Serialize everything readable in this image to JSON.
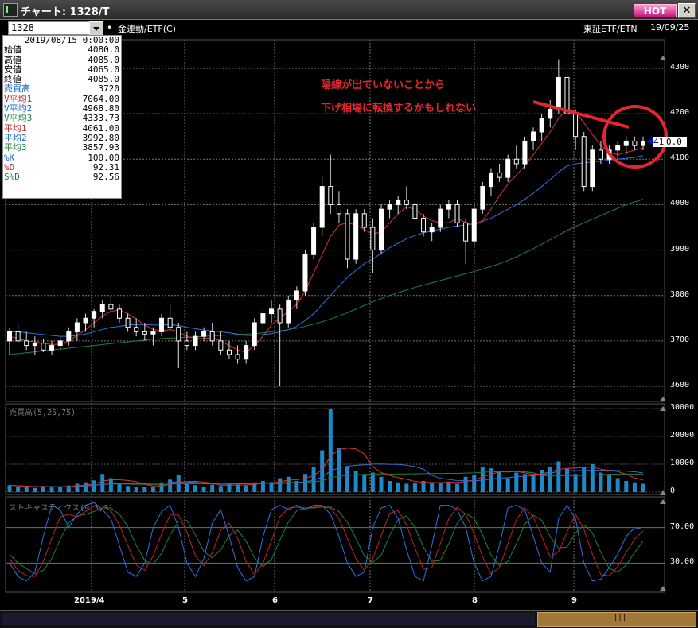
{
  "window": {
    "title": "チャート: 1328/T",
    "hot_label": "HOT",
    "close_label": "✕"
  },
  "toolbar": {
    "symbol_code": "1328",
    "bullet": "•",
    "category": "金連動/ETF(C)",
    "market": "東証ETF/ETN",
    "date": "19/09/25"
  },
  "info_panel": {
    "date": "2019/08/15 0:00:00",
    "rows": [
      {
        "key": "始値",
        "value": "4080.0",
        "color": "#000000"
      },
      {
        "key": "高値",
        "value": "4085.0",
        "color": "#000000"
      },
      {
        "key": "安値",
        "value": "4065.0",
        "color": "#000000"
      },
      {
        "key": "終値",
        "value": "4085.0",
        "color": "#000000"
      },
      {
        "key": "売買高",
        "value": "3720",
        "color": "#1060c0"
      },
      {
        "key": "V平均1",
        "value": "7064.00",
        "color": "#c02020"
      },
      {
        "key": "V平均2",
        "value": "4968.80",
        "color": "#1060c0"
      },
      {
        "key": "V平均3",
        "value": "4333.73",
        "color": "#208040"
      },
      {
        "key": "平均1",
        "value": "4061.00",
        "color": "#c02020"
      },
      {
        "key": "平均2",
        "value": "3992.80",
        "color": "#1060c0"
      },
      {
        "key": "平均3",
        "value": "3857.93",
        "color": "#208040"
      },
      {
        "key": "%K",
        "value": "100.00",
        "color": "#1060c0"
      },
      {
        "key": "%D",
        "value": "92.31",
        "color": "#c02020"
      },
      {
        "key": "S%D",
        "value": "92.56",
        "color": "#208040"
      }
    ]
  },
  "annotation": {
    "line1": "陽線が出ていないことから",
    "line2": "下げ相場に転換するかもしれない",
    "color": "#e8252c"
  },
  "price_tag": {
    "left": "41",
    "right": "0.0"
  },
  "price_axis": [
    "4300",
    "4200",
    "4100",
    "4000",
    "3900",
    "3800",
    "3700",
    "3600"
  ],
  "volume_axis": [
    "30000",
    "20000",
    "10000",
    "0"
  ],
  "stoch_axis": [
    "70.00",
    "30.00"
  ],
  "date_ticks": [
    "2019/4",
    "5",
    "6",
    "7",
    "8",
    "9"
  ],
  "panels": {
    "volume_title": "売買高(5,25,75)",
    "stoch_title": "ストキャスティクス(9,3,3)"
  },
  "chart_data": [
    {
      "type": "candlestick",
      "title": "",
      "ylim": [
        3600,
        4300
      ],
      "ma_colors": {
        "ma1": "#e03030",
        "ma2": "#3070e0",
        "ma3": "#208040"
      },
      "candles": [
        [
          3700,
          3730,
          3670,
          3720
        ],
        [
          3720,
          3740,
          3690,
          3700
        ],
        [
          3700,
          3720,
          3680,
          3690
        ],
        [
          3690,
          3710,
          3670,
          3695
        ],
        [
          3695,
          3705,
          3675,
          3680
        ],
        [
          3680,
          3700,
          3670,
          3690
        ],
        [
          3690,
          3710,
          3680,
          3700
        ],
        [
          3700,
          3730,
          3690,
          3720
        ],
        [
          3720,
          3750,
          3700,
          3740
        ],
        [
          3740,
          3760,
          3720,
          3750
        ],
        [
          3750,
          3770,
          3730,
          3765
        ],
        [
          3765,
          3790,
          3750,
          3780
        ],
        [
          3780,
          3800,
          3760,
          3770
        ],
        [
          3770,
          3780,
          3740,
          3750
        ],
        [
          3750,
          3760,
          3720,
          3730
        ],
        [
          3730,
          3750,
          3710,
          3720
        ],
        [
          3720,
          3740,
          3700,
          3715
        ],
        [
          3715,
          3730,
          3690,
          3720
        ],
        [
          3720,
          3760,
          3710,
          3750
        ],
        [
          3750,
          3780,
          3720,
          3730
        ],
        [
          3730,
          3740,
          3640,
          3700
        ],
        [
          3700,
          3720,
          3680,
          3690
        ],
        [
          3690,
          3720,
          3680,
          3710
        ],
        [
          3710,
          3730,
          3700,
          3720
        ],
        [
          3720,
          3740,
          3690,
          3700
        ],
        [
          3700,
          3720,
          3670,
          3680
        ],
        [
          3680,
          3700,
          3660,
          3670
        ],
        [
          3670,
          3690,
          3650,
          3660
        ],
        [
          3660,
          3700,
          3650,
          3690
        ],
        [
          3690,
          3750,
          3680,
          3740
        ],
        [
          3740,
          3770,
          3720,
          3760
        ],
        [
          3760,
          3790,
          3740,
          3770
        ],
        [
          3770,
          3780,
          3600,
          3740
        ],
        [
          3740,
          3800,
          3730,
          3790
        ],
        [
          3790,
          3820,
          3770,
          3810
        ],
        [
          3810,
          3900,
          3800,
          3890
        ],
        [
          3890,
          3960,
          3880,
          3950
        ],
        [
          3950,
          4060,
          3930,
          4040
        ],
        [
          4040,
          4110,
          3980,
          4000
        ],
        [
          4000,
          4030,
          3960,
          3980
        ],
        [
          3980,
          3990,
          3860,
          3880
        ],
        [
          3880,
          3990,
          3870,
          3980
        ],
        [
          3980,
          3990,
          3940,
          3950
        ],
        [
          3950,
          3970,
          3850,
          3900
        ],
        [
          3900,
          4000,
          3890,
          3990
        ],
        [
          3990,
          4010,
          3970,
          4000
        ],
        [
          4000,
          4020,
          3980,
          4010
        ],
        [
          4010,
          4040,
          3990,
          4000
        ],
        [
          4000,
          4010,
          3960,
          3970
        ],
        [
          3970,
          3980,
          3930,
          3940
        ],
        [
          3940,
          3960,
          3920,
          3950
        ],
        [
          3950,
          4000,
          3940,
          3990
        ],
        [
          3990,
          4010,
          3970,
          4000
        ],
        [
          4000,
          4010,
          3950,
          3960
        ],
        [
          3960,
          3970,
          3870,
          3920
        ],
        [
          3920,
          4000,
          3910,
          3990
        ],
        [
          3990,
          4050,
          3980,
          4040
        ],
        [
          4040,
          4080,
          4020,
          4070
        ],
        [
          4070,
          4090,
          4050,
          4060
        ],
        [
          4060,
          4110,
          4050,
          4100
        ],
        [
          4100,
          4130,
          4080,
          4090
        ],
        [
          4090,
          4150,
          4080,
          4140
        ],
        [
          4140,
          4170,
          4120,
          4160
        ],
        [
          4160,
          4200,
          4140,
          4190
        ],
        [
          4190,
          4230,
          4170,
          4210
        ],
        [
          4210,
          4320,
          4200,
          4280
        ],
        [
          4280,
          4290,
          4180,
          4200
        ],
        [
          4200,
          4210,
          4120,
          4150
        ],
        [
          4150,
          4160,
          4030,
          4040
        ],
        [
          4040,
          4130,
          4030,
          4120
        ],
        [
          4120,
          4140,
          4090,
          4100
        ],
        [
          4100,
          4130,
          4090,
          4120
        ],
        [
          4120,
          4140,
          4100,
          4130
        ],
        [
          4130,
          4150,
          4110,
          4140
        ],
        [
          4140,
          4150,
          4120,
          4130
        ],
        [
          4130,
          4150,
          4120,
          4140
        ]
      ],
      "ma1": [
        3710,
        3705,
        3700,
        3698,
        3695,
        3692,
        3693,
        3700,
        3712,
        3725,
        3740,
        3755,
        3765,
        3768,
        3760,
        3748,
        3735,
        3725,
        3722,
        3725,
        3720,
        3710,
        3705,
        3705,
        3707,
        3700,
        3690,
        3680,
        3675,
        3690,
        3710,
        3735,
        3750,
        3765,
        3780,
        3810,
        3850,
        3890,
        3930,
        3955,
        3960,
        3955,
        3945,
        3935,
        3940,
        3960,
        3980,
        3995,
        3990,
        3975,
        3965,
        3960,
        3960,
        3970,
        3960,
        3955,
        3965,
        3990,
        4020,
        4045,
        4065,
        4085,
        4110,
        4135,
        4160,
        4190,
        4210,
        4205,
        4180,
        4155,
        4130,
        4115,
        4110,
        4115,
        4120,
        4125
      ],
      "ma2": [
        3720,
        3720,
        3718,
        3716,
        3714,
        3712,
        3710,
        3710,
        3712,
        3715,
        3720,
        3725,
        3730,
        3732,
        3735,
        3736,
        3736,
        3735,
        3735,
        3736,
        3734,
        3730,
        3727,
        3724,
        3722,
        3720,
        3718,
        3715,
        3712,
        3712,
        3714,
        3716,
        3720,
        3725,
        3732,
        3745,
        3760,
        3780,
        3800,
        3820,
        3840,
        3855,
        3870,
        3880,
        3893,
        3905,
        3915,
        3925,
        3932,
        3938,
        3942,
        3946,
        3950,
        3953,
        3955,
        3958,
        3963,
        3970,
        3980,
        3990,
        4000,
        4012,
        4025,
        4040,
        4055,
        4072,
        4085,
        4090,
        4092,
        4094,
        4096,
        4098,
        4100,
        4102,
        4104,
        4108
      ],
      "ma3": [
        3670,
        3672,
        3674,
        3676,
        3678,
        3680,
        3682,
        3684,
        3686,
        3688,
        3690,
        3692,
        3694,
        3696,
        3698,
        3700,
        3702,
        3704,
        3705,
        3706,
        3707,
        3708,
        3709,
        3710,
        3711,
        3712,
        3713,
        3714,
        3715,
        3716,
        3718,
        3720,
        3722,
        3725,
        3728,
        3732,
        3737,
        3742,
        3748,
        3755,
        3762,
        3770,
        3778,
        3786,
        3793,
        3800,
        3806,
        3812,
        3818,
        3823,
        3828,
        3833,
        3838,
        3843,
        3848,
        3853,
        3858,
        3864,
        3870,
        3877,
        3885,
        3894,
        3903,
        3913,
        3923,
        3933,
        3943,
        3952,
        3960,
        3968,
        3976,
        3984,
        3992,
        4000,
        4006,
        4012
      ]
    },
    {
      "type": "bar",
      "title": "",
      "ylim": [
        0,
        30000
      ],
      "values": [
        2500,
        2000,
        1800,
        1500,
        2200,
        1700,
        1900,
        2400,
        3000,
        3500,
        4200,
        6500,
        5000,
        3000,
        2200,
        2000,
        1800,
        2000,
        3500,
        4500,
        6000,
        3000,
        2500,
        2000,
        2600,
        2200,
        3000,
        2800,
        2400,
        3500,
        4000,
        3600,
        5000,
        5500,
        4000,
        6500,
        9000,
        15000,
        30000,
        16000,
        9000,
        7500,
        6000,
        7000,
        5500,
        4000,
        3500,
        3000,
        3200,
        4000,
        3500,
        3200,
        3800,
        3000,
        5500,
        6000,
        9000,
        8500,
        7500,
        5000,
        7000,
        6500,
        6000,
        8000,
        9000,
        11000,
        8500,
        6500,
        9000,
        10000,
        7000,
        6000,
        5000,
        4000,
        3500,
        3000
      ],
      "ma_colors": {
        "ma1": "#e03030",
        "ma2": "#3070e0",
        "ma3": "#208040"
      }
    },
    {
      "type": "line",
      "title": "",
      "ylim": [
        0,
        100
      ],
      "series": [
        {
          "color": "#3070e0",
          "values": [
            30,
            15,
            10,
            20,
            60,
            95,
            90,
            70,
            85,
            95,
            98,
            90,
            80,
            50,
            20,
            15,
            30,
            70,
            88,
            95,
            70,
            30,
            15,
            35,
            75,
            90,
            60,
            25,
            10,
            15,
            60,
            90,
            95,
            90,
            95,
            90,
            95,
            95,
            85,
            60,
            30,
            15,
            20,
            70,
            92,
            95,
            80,
            45,
            15,
            10,
            50,
            95,
            95,
            90,
            70,
            30,
            10,
            15,
            50,
            92,
            95,
            90,
            60,
            30,
            20,
            80,
            95,
            80,
            30,
            10,
            12,
            25,
            40,
            60,
            70,
            68
          ]
        },
        {
          "color": "#c02020",
          "values": [
            35,
            22,
            16,
            15,
            32,
            58,
            82,
            85,
            82,
            88,
            94,
            94,
            89,
            73,
            50,
            28,
            22,
            38,
            63,
            84,
            84,
            65,
            38,
            27,
            42,
            67,
            75,
            58,
            32,
            17,
            30,
            55,
            82,
            92,
            93,
            92,
            93,
            93,
            92,
            80,
            58,
            35,
            22,
            35,
            61,
            86,
            89,
            73,
            47,
            23,
            25,
            52,
            80,
            93,
            85,
            63,
            37,
            18,
            25,
            52,
            79,
            92,
            82,
            60,
            37,
            43,
            65,
            85,
            68,
            40,
            17,
            16,
            26,
            42,
            57,
            66
          ]
        },
        {
          "color": "#208040",
          "values": [
            40,
            30,
            24,
            18,
            22,
            35,
            57,
            75,
            83,
            85,
            88,
            92,
            92,
            85,
            71,
            50,
            33,
            29,
            41,
            62,
            77,
            78,
            62,
            43,
            36,
            45,
            61,
            67,
            55,
            36,
            26,
            34,
            56,
            76,
            89,
            92,
            92,
            93,
            93,
            88,
            76,
            58,
            38,
            31,
            39,
            61,
            79,
            83,
            70,
            48,
            32,
            33,
            52,
            75,
            86,
            80,
            62,
            39,
            27,
            32,
            52,
            74,
            84,
            78,
            60,
            47,
            48,
            64,
            73,
            64,
            42,
            24,
            20,
            28,
            42,
            55
          ]
        }
      ]
    }
  ]
}
